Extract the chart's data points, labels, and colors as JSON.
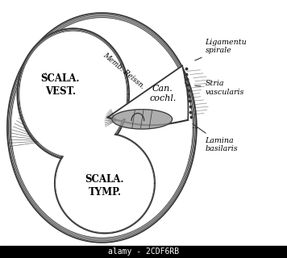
{
  "bg_color": "#ffffff",
  "line_color": "#333333",
  "fill_white": "#ffffff",
  "fill_gray": "#aaaaaa",
  "fill_dark": "#888888",
  "scala_vest_line1": "ŚCALA.",
  "scala_vest_line2": "VEST.",
  "scala_tymp_line1": "SCALA.",
  "scala_tymp_line2": "TYMP.",
  "can_cochl_line1": "Can.",
  "can_cochl_line2": "cochl.",
  "memb_reissn": "Memb. Reissn.",
  "ligamentum": "Ligamentu\nspirаle",
  "stria": "Stria\nvascularis",
  "lamina": "Lamina\nbasilaris",
  "watermark": "alamy - 2CDF6RB"
}
